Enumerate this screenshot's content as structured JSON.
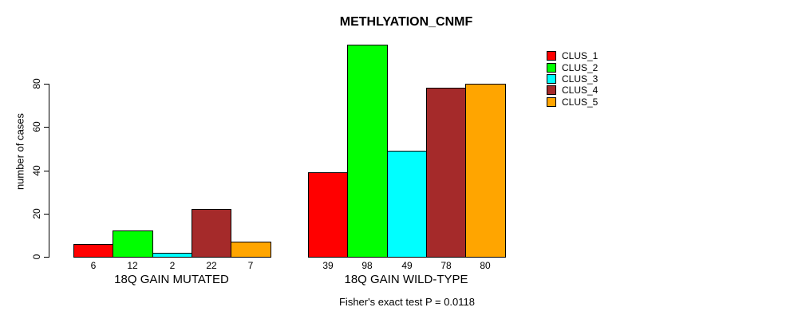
{
  "chart_data": {
    "type": "bar",
    "title": "METHLYATION_CNMF",
    "ylabel": "number of cases",
    "xlabel": "",
    "categories": [
      "18Q GAIN MUTATED",
      "18Q GAIN WILD-TYPE"
    ],
    "series": [
      {
        "name": "CLUS_1",
        "color": "#FF0000",
        "values": [
          6,
          39
        ]
      },
      {
        "name": "CLUS_2",
        "color": "#00FF00",
        "values": [
          12,
          98
        ]
      },
      {
        "name": "CLUS_3",
        "color": "#00FFFF",
        "values": [
          2,
          49
        ]
      },
      {
        "name": "CLUS_4",
        "color": "#A52A2A",
        "values": [
          22,
          78
        ]
      },
      {
        "name": "CLUS_5",
        "color": "#FFA500",
        "values": [
          7,
          80
        ]
      }
    ],
    "bar_value_labels": [
      [
        "6",
        "12",
        "2",
        "22",
        "7"
      ],
      [
        "39",
        "98",
        "49",
        "78",
        "80"
      ]
    ],
    "yticks": [
      0,
      20,
      40,
      60,
      80
    ],
    "ylim": [
      0,
      100
    ],
    "grid": false,
    "legend_position": "right",
    "legend_labels": [
      "CLUS_1",
      "CLUS_2",
      "CLUS_3",
      "CLUS_4",
      "CLUS_5"
    ],
    "annotation": "Fisher's exact test P = 0.0118"
  },
  "colors": {
    "foreground": "#000000",
    "background": "#FFFFFF"
  }
}
